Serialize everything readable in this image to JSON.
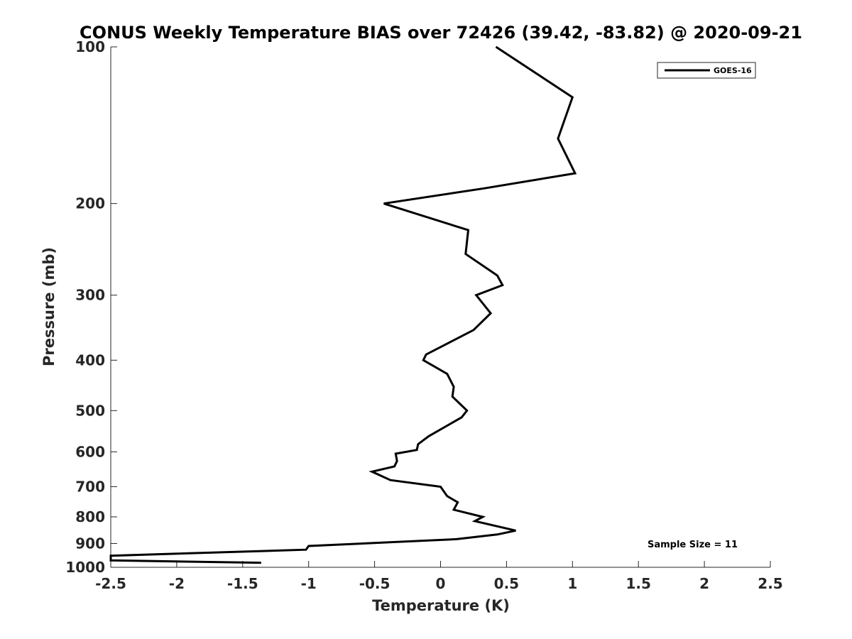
{
  "chart_data": {
    "type": "line",
    "title": "CONUS Weekly Temperature BIAS over 72426 (39.42, -83.82) @ 2020-09-21",
    "xlabel": "Temperature (K)",
    "ylabel": "Pressure (mb)",
    "xlim": [
      -2.5,
      2.5
    ],
    "ylim": [
      1000,
      100
    ],
    "yscale": "log",
    "y_reversed": true,
    "grid": false,
    "legend_position": "top-right",
    "x_ticks": [
      -2.5,
      -2,
      -1.5,
      -1,
      -0.5,
      0,
      0.5,
      1,
      1.5,
      2,
      2.5
    ],
    "x_tick_labels": [
      "-2.5",
      "-2",
      "-1.5",
      "-1",
      "-0.5",
      "0",
      "0.5",
      "1",
      "1.5",
      "2",
      "2.5"
    ],
    "y_ticks": [
      100,
      200,
      300,
      400,
      500,
      600,
      700,
      800,
      900,
      1000
    ],
    "y_tick_labels": [
      "100",
      "200",
      "300",
      "400",
      "500",
      "600",
      "700",
      "800",
      "900",
      "1000"
    ],
    "annotation": "Sample Size = 11",
    "series": [
      {
        "name": "GOES-16",
        "color": "#000000",
        "points": [
          {
            "x": 0.42,
            "y": 100
          },
          {
            "x": 1.0,
            "y": 125
          },
          {
            "x": 0.89,
            "y": 150
          },
          {
            "x": 1.02,
            "y": 175
          },
          {
            "x": 0.33,
            "y": 187
          },
          {
            "x": -0.43,
            "y": 200
          },
          {
            "x": 0.21,
            "y": 225
          },
          {
            "x": 0.19,
            "y": 250
          },
          {
            "x": 0.43,
            "y": 275
          },
          {
            "x": 0.47,
            "y": 287
          },
          {
            "x": 0.27,
            "y": 300
          },
          {
            "x": 0.38,
            "y": 325
          },
          {
            "x": 0.25,
            "y": 350
          },
          {
            "x": -0.11,
            "y": 390
          },
          {
            "x": -0.13,
            "y": 400
          },
          {
            "x": 0.05,
            "y": 425
          },
          {
            "x": 0.1,
            "y": 450
          },
          {
            "x": 0.09,
            "y": 470
          },
          {
            "x": 0.2,
            "y": 500
          },
          {
            "x": 0.16,
            "y": 515
          },
          {
            "x": -0.09,
            "y": 560
          },
          {
            "x": -0.17,
            "y": 580
          },
          {
            "x": -0.18,
            "y": 595
          },
          {
            "x": -0.34,
            "y": 605
          },
          {
            "x": -0.33,
            "y": 625
          },
          {
            "x": -0.35,
            "y": 640
          },
          {
            "x": -0.52,
            "y": 655
          },
          {
            "x": -0.38,
            "y": 680
          },
          {
            "x": 0.0,
            "y": 700
          },
          {
            "x": 0.05,
            "y": 730
          },
          {
            "x": 0.13,
            "y": 750
          },
          {
            "x": 0.1,
            "y": 775
          },
          {
            "x": 0.32,
            "y": 800
          },
          {
            "x": 0.26,
            "y": 815
          },
          {
            "x": 0.57,
            "y": 850
          },
          {
            "x": 0.43,
            "y": 865
          },
          {
            "x": 0.12,
            "y": 883
          },
          {
            "x": -1.0,
            "y": 910
          },
          {
            "x": -1.02,
            "y": 925
          },
          {
            "x": -2.5,
            "y": 950
          },
          {
            "x": -2.5,
            "y": 970
          },
          {
            "x": -1.36,
            "y": 980
          }
        ]
      }
    ]
  }
}
